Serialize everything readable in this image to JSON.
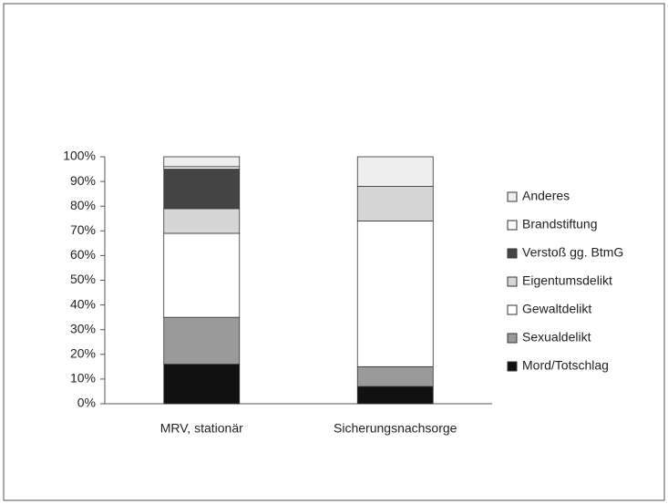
{
  "chart_data": {
    "type": "stacked_bar",
    "categories": [
      "MRV, stationär",
      "Sicherungsnachsorge"
    ],
    "series": [
      {
        "name": "Mord/Totschlag",
        "color": "#111111",
        "values": [
          16,
          7
        ]
      },
      {
        "name": "Sexualdelikt",
        "color": "#9a9a9a",
        "values": [
          19,
          8
        ]
      },
      {
        "name": "Gewaltdelikt",
        "color": "#ffffff",
        "values": [
          34,
          59
        ]
      },
      {
        "name": "Eigentumsdelikt",
        "color": "#d6d6d6",
        "values": [
          10,
          14
        ]
      },
      {
        "name": "Verstoß gg. BtmG",
        "color": "#444444",
        "values": [
          16,
          0
        ]
      },
      {
        "name": "Brandstiftung",
        "color": "#fafafa",
        "values": [
          1,
          0
        ]
      },
      {
        "name": "Anderes",
        "color": "#eeeeee",
        "values": [
          4,
          12
        ]
      }
    ],
    "ylim": [
      0,
      100
    ],
    "yticks": [
      {
        "value": 0,
        "label": "0%"
      },
      {
        "value": 10,
        "label": "10%"
      },
      {
        "value": 20,
        "label": "20%"
      },
      {
        "value": 30,
        "label": "30%"
      },
      {
        "value": 40,
        "label": "40%"
      },
      {
        "value": 50,
        "label": "50%"
      },
      {
        "value": 60,
        "label": "60%"
      },
      {
        "value": 70,
        "label": "70%"
      },
      {
        "value": 80,
        "label": "80%"
      },
      {
        "value": 90,
        "label": "90%"
      },
      {
        "value": 100,
        "label": "100%"
      }
    ],
    "grid": false,
    "legend": "right"
  }
}
